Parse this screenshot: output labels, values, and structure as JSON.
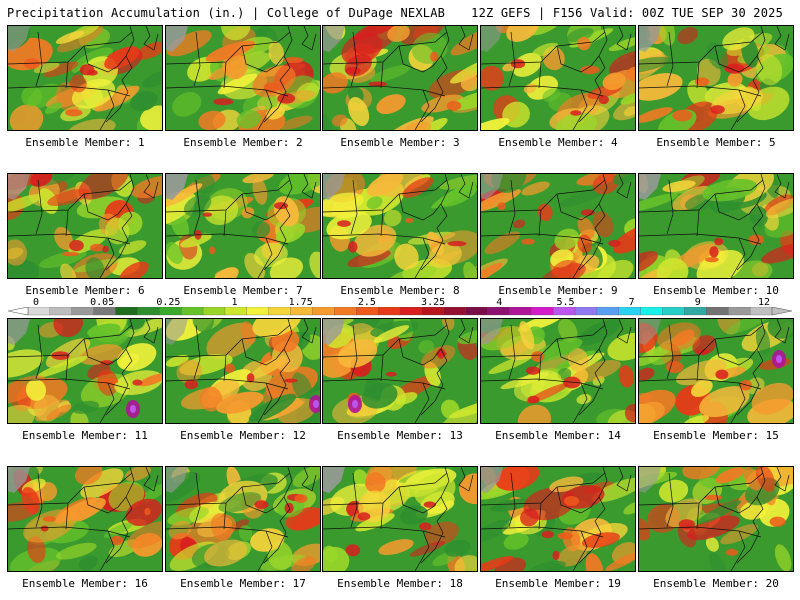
{
  "header": {
    "title_left": "Precipitation Accumulation (in.) | College of DuPage NEXLAB",
    "title_right": "12Z GEFS | F156 Valid: 00Z TUE SEP 30 2025"
  },
  "scale": {
    "labels": [
      "0",
      "0.05",
      "0.25",
      "1",
      "1.75",
      "2.5",
      "3.25",
      "4",
      "5.5",
      "7",
      "9",
      "12"
    ],
    "colors": [
      "#d9d9d9",
      "#bdbdbd",
      "#9a9a9a",
      "#7a7a7a",
      "#1f6e1f",
      "#2f8f2f",
      "#3aaa2a",
      "#66c22a",
      "#9ad62a",
      "#cde62e",
      "#f2f23a",
      "#f5d43a",
      "#f6b93a",
      "#f59a2e",
      "#f27a24",
      "#ee5a1c",
      "#e83a18",
      "#d81e1e",
      "#b8141e",
      "#951030",
      "#7a0d48",
      "#8e1070",
      "#b01498",
      "#d21ccc",
      "#bb55ee",
      "#8f7af2",
      "#5aa0f2",
      "#2ad2f2",
      "#18f0e8",
      "#26cfc6",
      "#32a8a2",
      "#737373",
      "#9a9a9a",
      "#c0c0c0"
    ]
  },
  "members": [
    "Ensemble Member: 1",
    "Ensemble Member: 2",
    "Ensemble Member: 3",
    "Ensemble Member: 4",
    "Ensemble Member: 5",
    "Ensemble Member: 6",
    "Ensemble Member: 7",
    "Ensemble Member: 8",
    "Ensemble Member: 9",
    "Ensemble Member: 10",
    "Ensemble Member: 11",
    "Ensemble Member: 12",
    "Ensemble Member: 13",
    "Ensemble Member: 14",
    "Ensemble Member: 15",
    "Ensemble Member: 16",
    "Ensemble Member: 17",
    "Ensemble Member: 18",
    "Ensemble Member: 19",
    "Ensemble Member: 20"
  ]
}
